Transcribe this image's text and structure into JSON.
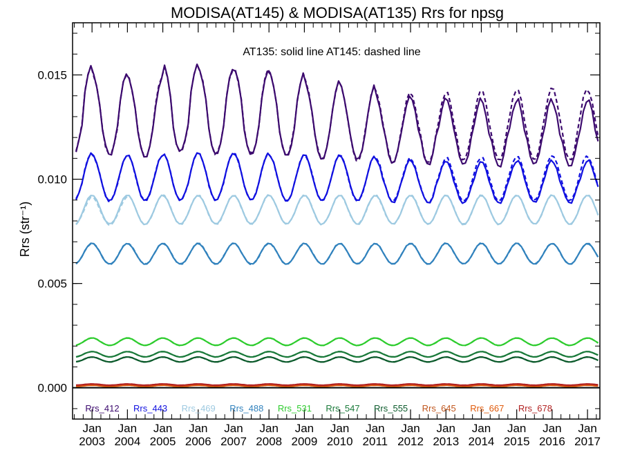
{
  "chart_data": {
    "type": "line",
    "title": "MODISA(AT145) & MODISA(AT135)  Rrs for npsg",
    "ylabel": "Rrs (str⁻¹)",
    "annotation": "AT135: solid line   AT145: dashed line",
    "xlim": [
      2002.45,
      2017.35
    ],
    "ylim": [
      -0.0015,
      0.0175
    ],
    "yticks": [
      0.0,
      0.005,
      0.01,
      0.015
    ],
    "ytick_labels": [
      "0.000",
      "0.005",
      "0.010",
      "0.015"
    ],
    "xtick_years": [
      2003,
      2004,
      2005,
      2006,
      2007,
      2008,
      2009,
      2010,
      2011,
      2012,
      2013,
      2014,
      2015,
      2016,
      2017
    ],
    "xtick_month_label": "Jan",
    "x_start": 2002.55,
    "x_end": 2017.3,
    "series": [
      {
        "name": "Rrs_412",
        "color": "#3c0a6e",
        "base": 0.0126,
        "amp": 0.0018,
        "anom": [
          0.001,
          0.0006,
          0.0004,
          0.001,
          0.0008,
          0.0008,
          0.0006,
          0.0002,
          0.0,
          -0.0004,
          -0.0006,
          -0.0006,
          -0.0008,
          -0.0006,
          -0.0008,
          -0.0006
        ],
        "dash_shift": [
          0,
          0,
          0,
          0,
          0,
          0,
          0,
          0,
          0,
          0.0001,
          0.0002,
          0.0004,
          0.0006,
          0.0005,
          0.0007,
          0.0004
        ]
      },
      {
        "name": "Rrs_443",
        "color": "#1010e0",
        "base": 0.01,
        "amp": 0.0011,
        "anom": [
          0.0001,
          0.0,
          0.0,
          0.0001,
          0.0001,
          0.0001,
          0.0,
          0.0,
          0.0,
          -0.0002,
          -0.0003,
          -0.0003,
          -0.0003,
          -0.0002,
          -0.0003,
          -0.0002
        ],
        "dash_shift": [
          0,
          0,
          0,
          0,
          0,
          0,
          0,
          0,
          0,
          0.0001,
          0.0001,
          0.0002,
          0.0002,
          0.0002,
          0.0003,
          0.0001
        ]
      },
      {
        "name": "Rrs_469",
        "color": "#9ecae1",
        "base": 0.0085,
        "amp": 0.0007,
        "anom": [
          0,
          0,
          0,
          0,
          0,
          0,
          0,
          0,
          0,
          0,
          0,
          0,
          0,
          0,
          0,
          0
        ],
        "dash_shift": [
          -0.0001,
          -0.0001,
          0,
          0,
          0,
          0,
          0,
          0,
          0,
          0,
          0,
          0,
          0,
          0,
          0,
          0
        ]
      },
      {
        "name": "Rrs_488",
        "color": "#3182bd",
        "base": 0.0064,
        "amp": 0.0005,
        "anom": [
          0,
          0,
          0,
          0,
          0,
          0,
          0,
          0,
          0,
          0,
          0,
          0,
          0,
          0,
          0,
          0
        ],
        "dash_shift": [
          0,
          0,
          0,
          0,
          0,
          0,
          0,
          0,
          0,
          0,
          0,
          0,
          0,
          0,
          0,
          0
        ]
      },
      {
        "name": "Rrs_531",
        "color": "#2ecc2e",
        "base": 0.0022,
        "amp": 0.00018,
        "anom": [
          0,
          0,
          0,
          0,
          0,
          0,
          0,
          0,
          0,
          0,
          0,
          0,
          0,
          0,
          0,
          0
        ],
        "dash_shift": [
          0,
          0,
          0,
          0,
          0,
          0,
          0,
          0,
          0,
          0,
          0,
          0,
          0,
          0,
          0,
          0
        ]
      },
      {
        "name": "Rrs_547",
        "color": "#1a7a3a",
        "base": 0.0016,
        "amp": 0.00013,
        "anom": [
          0,
          0,
          0,
          0,
          0,
          0,
          0,
          0,
          0,
          0,
          0,
          0,
          0,
          0,
          0,
          0
        ],
        "dash_shift": [
          0,
          0,
          0,
          0,
          0,
          0,
          0,
          0,
          0,
          0,
          0,
          0,
          0,
          0,
          0,
          0
        ]
      },
      {
        "name": "Rrs_555",
        "color": "#0b5a2b",
        "base": 0.00135,
        "amp": 0.00012,
        "anom": [
          0,
          0,
          0,
          0,
          0,
          0,
          0,
          0,
          0,
          0,
          0,
          0,
          0,
          0,
          0,
          0
        ],
        "dash_shift": [
          0,
          0,
          0,
          0,
          0,
          0,
          0,
          0,
          0,
          0,
          0,
          0,
          0,
          0,
          0,
          0
        ]
      },
      {
        "name": "Rrs_645",
        "color": "#c0561c",
        "base": 0.00012,
        "amp": 3e-05,
        "anom": [
          0,
          0,
          0,
          0,
          0,
          0,
          0,
          0,
          0,
          0,
          0,
          0,
          0,
          0,
          0,
          0
        ],
        "dash_shift": [
          0,
          0,
          0,
          0,
          0,
          0,
          0,
          0,
          0,
          0,
          0,
          0,
          0,
          0,
          0,
          0
        ]
      },
      {
        "name": "Rrs_667",
        "color": "#e05a0a",
        "base": 9e-05,
        "amp": 3e-05,
        "anom": [
          0,
          0,
          0,
          0,
          0,
          0,
          0,
          0,
          0,
          0,
          0,
          0,
          0,
          0,
          0,
          0
        ],
        "dash_shift": [
          0,
          0,
          0,
          0,
          0,
          0,
          0,
          0,
          0,
          0,
          0,
          0,
          0,
          0,
          0,
          0
        ]
      },
      {
        "name": "Rrs_678",
        "color": "#b22222",
        "base": 0.00015,
        "amp": 3e-05,
        "anom": [
          0,
          0,
          0,
          0,
          0,
          0,
          0,
          0,
          0,
          0,
          0,
          0,
          0,
          0,
          0,
          0
        ],
        "dash_shift": [
          0,
          0,
          0,
          0,
          0,
          0,
          0,
          0,
          0,
          0,
          0,
          0,
          0,
          0,
          0,
          0
        ]
      }
    ],
    "zero_line": true,
    "legend_placement": "bottom-inside"
  }
}
